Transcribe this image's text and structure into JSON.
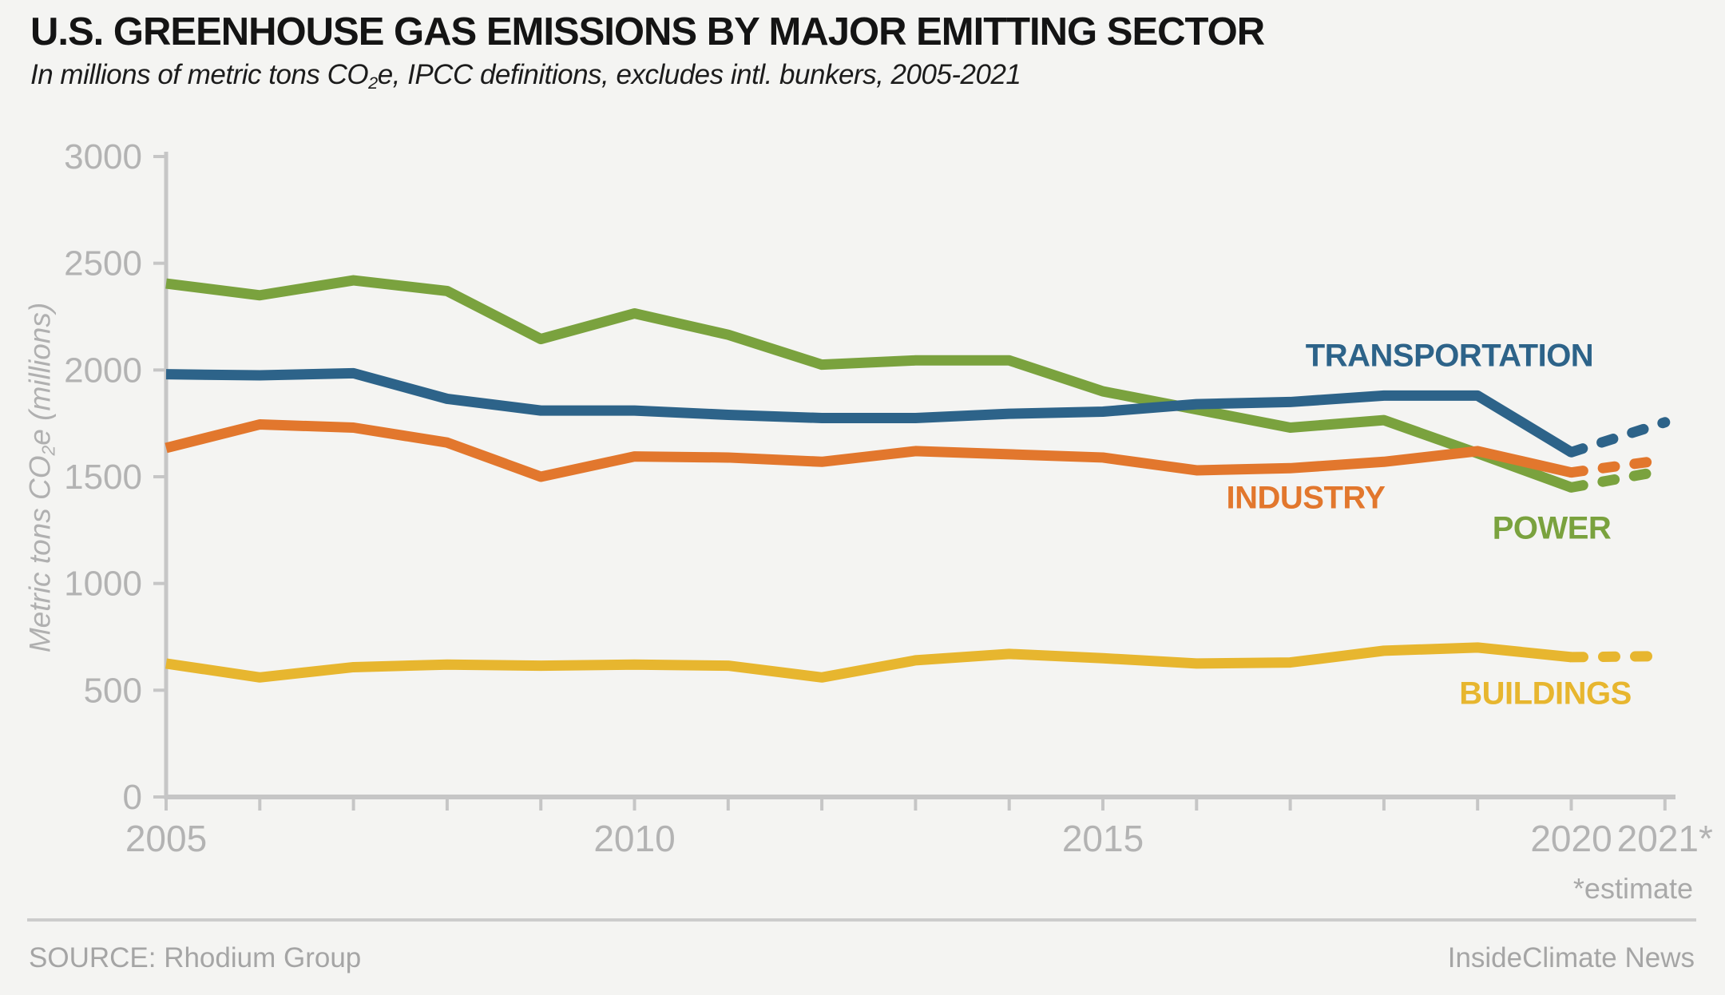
{
  "chart_data": {
    "type": "line",
    "title": "U.S. GREENHOUSE GAS EMISSIONS BY MAJOR EMITTING SECTOR",
    "subtitle_parts": [
      "In millions of metric tons CO",
      "2",
      "e, IPCC definitions, excludes intl. bunkers, 2005-2021"
    ],
    "x": [
      2005,
      2006,
      2007,
      2008,
      2009,
      2010,
      2011,
      2012,
      2013,
      2014,
      2015,
      2016,
      2017,
      2018,
      2019,
      2020,
      2021
    ],
    "x_tick_labels": [
      {
        "year": 2005,
        "label": "2005"
      },
      {
        "year": 2010,
        "label": "2010"
      },
      {
        "year": 2015,
        "label": "2015"
      },
      {
        "year": 2020,
        "label": "2020"
      },
      {
        "year": 2021,
        "label": "2021*"
      }
    ],
    "y_axis": {
      "title_parts": [
        "Metric tons CO",
        "2",
        "e (millions)"
      ],
      "min": 0,
      "max": 3000,
      "tick_interval": 500,
      "tick_labels": [
        "0",
        "500",
        "1000",
        "1500",
        "2000",
        "2500",
        "3000"
      ]
    },
    "series": [
      {
        "name": "POWER",
        "color": "#7aa23e",
        "values": [
          2405,
          2350,
          2420,
          2370,
          2145,
          2265,
          2165,
          2025,
          2045,
          2045,
          1900,
          1815,
          1730,
          1765,
          1610,
          1450,
          1530
        ],
        "last_segment_dashed": true
      },
      {
        "name": "TRANSPORTATION",
        "color": "#2d6389",
        "values": [
          1980,
          1975,
          1985,
          1865,
          1810,
          1810,
          1790,
          1775,
          1775,
          1795,
          1805,
          1840,
          1850,
          1880,
          1880,
          1615,
          1755
        ],
        "last_segment_dashed": true
      },
      {
        "name": "INDUSTRY",
        "color": "#e2772d",
        "values": [
          1635,
          1745,
          1730,
          1660,
          1500,
          1595,
          1590,
          1570,
          1620,
          1605,
          1590,
          1530,
          1540,
          1570,
          1620,
          1520,
          1580
        ],
        "last_segment_dashed": true
      },
      {
        "name": "BUILDINGS",
        "color": "#e7b62f",
        "values": [
          625,
          560,
          608,
          620,
          615,
          620,
          615,
          560,
          640,
          670,
          650,
          625,
          630,
          685,
          700,
          655,
          660
        ],
        "last_segment_dashed": true
      }
    ],
    "estimate_note": "*estimate",
    "layout_hints": {
      "grid": "off",
      "legend": "inline-labels"
    },
    "axis_color": "#c6c6c6",
    "tick_label_color": "#b3b3b3"
  },
  "footer": {
    "source": "SOURCE: Rhodium Group",
    "credit": "InsideClimate News"
  }
}
